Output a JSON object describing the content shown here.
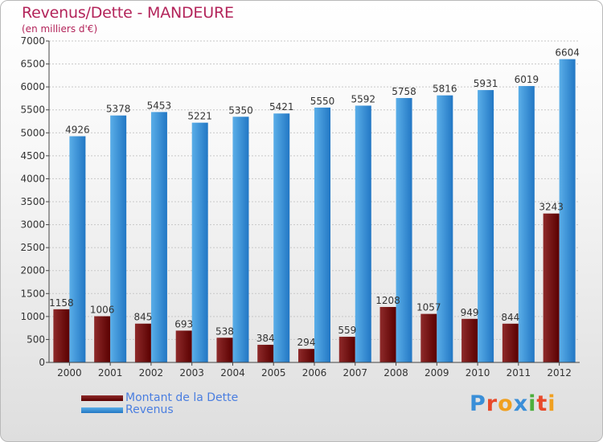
{
  "title": "Revenus/Dette - MANDEURE",
  "subtitle": "(en milliers d'€)",
  "logo_text": "Proxiti",
  "chart_data": {
    "type": "bar",
    "categories": [
      "2000",
      "2001",
      "2002",
      "2003",
      "2004",
      "2005",
      "2006",
      "2007",
      "2008",
      "2009",
      "2010",
      "2011",
      "2012"
    ],
    "series": [
      {
        "name": "Montant de la Dette",
        "color": "#6e0b0b",
        "values": [
          1158,
          1006,
          845,
          693,
          538,
          384,
          294,
          559,
          1208,
          1057,
          949,
          844,
          3243
        ]
      },
      {
        "name": "Revenus",
        "color": "#3d95e0",
        "values": [
          4926,
          5378,
          5453,
          5221,
          5350,
          5421,
          5550,
          5592,
          5758,
          5816,
          5931,
          6019,
          6604
        ]
      }
    ],
    "ylim": [
      0,
      7000
    ],
    "yticks": [
      0,
      500,
      1000,
      1500,
      2000,
      2500,
      3000,
      3500,
      4000,
      4500,
      5000,
      5500,
      6000,
      6500,
      7000
    ],
    "grid": true,
    "legend": "bottom-left"
  },
  "colors": {
    "title": "#b3245a",
    "debt_dark": "#5a0000",
    "debt_light": "#8e2a2a",
    "revenue_dark": "#2277c4",
    "revenue_light": "#5aaee8",
    "legend_text": "#4a7ee0"
  }
}
